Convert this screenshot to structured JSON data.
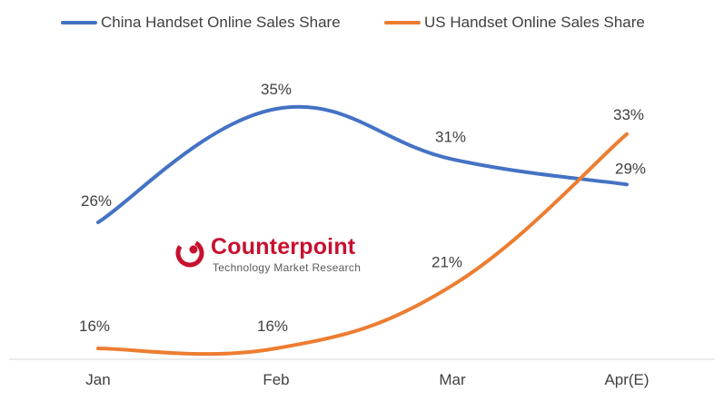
{
  "chart_data": {
    "type": "line",
    "categories": [
      "Jan",
      "Feb",
      "Mar",
      "Apr(E)"
    ],
    "series": [
      {
        "name": "China Handset Online Sales Share",
        "values": [
          26,
          35,
          31,
          29
        ],
        "labels": [
          "26%",
          "35%",
          "31%",
          "29%"
        ],
        "color": "#4472c4"
      },
      {
        "name": "US Handset Online Sales Share",
        "values": [
          16,
          16,
          21,
          33
        ],
        "labels": [
          "16%",
          "16%",
          "21%",
          "33%"
        ],
        "color": "#ed7d31"
      }
    ],
    "ylim": [
      15,
      38
    ],
    "y_unit": "%",
    "grid": false,
    "smooth": true,
    "legend_position": "top"
  },
  "logo": {
    "name": "Counterpoint",
    "tagline": "Technology Market Research",
    "color": "#c8102e"
  }
}
